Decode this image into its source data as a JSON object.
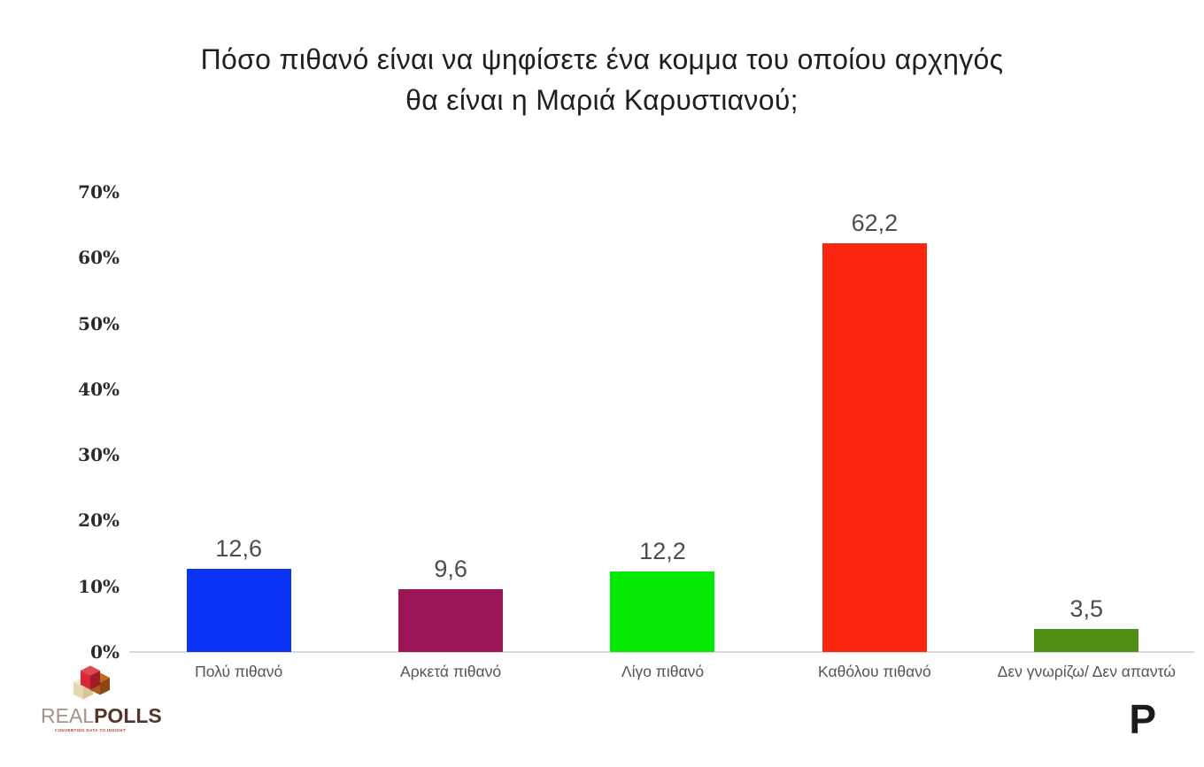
{
  "header": {
    "title_lines": [
      "Πόσο πιθανό είναι να ψηφίσετε ένα κομμα του οποίου αρχηγός",
      "θα είναι η Μαριά Καρυστιανού;"
    ]
  },
  "chart_data": {
    "type": "bar",
    "title": "Πόσο πιθανό είναι να ψηφίσετε ένα κομμα του οποίου αρχηγός θα είναι η Μαριά Καρυστιανού;",
    "categories": [
      "Πολύ πιθανό",
      "Αρκετά πιθανό",
      "Λίγο πιθανό",
      "Καθόλου πιθανό",
      "Δεν γνωρίζω/ Δεν απαντώ"
    ],
    "values": [
      12.6,
      9.6,
      12.2,
      62.2,
      3.5
    ],
    "value_labels": [
      "12,6",
      "9,6",
      "12,2",
      "62,2",
      "3,5"
    ],
    "bar_colors": [
      "#0a33f5",
      "#9b1656",
      "#06e806",
      "#fb2510",
      "#4f8e17"
    ],
    "xlabel": "",
    "ylabel": "",
    "ylim": [
      0,
      70
    ],
    "ytick_values": [
      0,
      10,
      20,
      30,
      40,
      50,
      60,
      70
    ],
    "ytick_labels": [
      "0%",
      "10%",
      "20%",
      "30%",
      "40%",
      "50%",
      "60%",
      "70%"
    ],
    "grid": false,
    "legend_position": "none"
  },
  "footer": {
    "brand": {
      "name_part1": "REAL",
      "name_part2": "POLLS",
      "tagline": "CONVERTING DATA TO INSIGHT"
    },
    "publisher": {
      "letter": "P",
      "dot_color": "#e8190f"
    }
  },
  "colors": {
    "axis_line": "#d9d9d9",
    "value_label": "#4d4d4d",
    "category_label": "#545454",
    "title": "#1f1f1f"
  }
}
